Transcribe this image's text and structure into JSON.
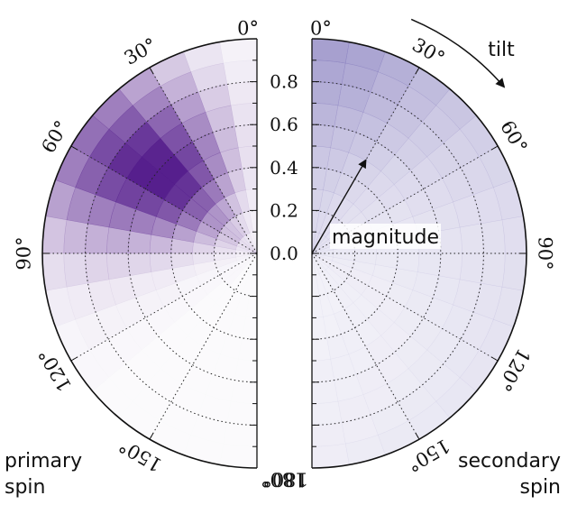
{
  "chart_data": {
    "type": "heatmap",
    "projection": "half-polar",
    "radial_axis": {
      "label": "magnitude",
      "range": [
        0,
        1
      ],
      "tick_values": [
        0.0,
        0.2,
        0.4,
        0.6,
        0.8
      ],
      "tick_labels": [
        "0.0",
        "0.2",
        "0.4",
        "0.6",
        "0.8"
      ],
      "minor_ticks": [
        0.1,
        0.3,
        0.5,
        0.7,
        0.9
      ],
      "grid": true
    },
    "angular_axis": {
      "label": "tilt",
      "unit": "deg",
      "range": [
        0,
        180
      ],
      "tick_values": [
        0,
        30,
        60,
        90,
        120,
        150,
        180
      ],
      "tick_labels": [
        "0°",
        "30°",
        "60°",
        "90°",
        "120°",
        "150°",
        "180°"
      ],
      "grid": true
    },
    "panels": [
      {
        "side": "left",
        "name_lines": [
          "primary",
          "spin"
        ],
        "color": "#3f007d",
        "peak": {
          "magnitude": 0.62,
          "tilt_deg": 42,
          "intensity": 0.9
        },
        "density_grid": {
          "magnitude_bins": [
            0.05,
            0.15,
            0.25,
            0.35,
            0.45,
            0.55,
            0.65,
            0.75,
            0.85,
            0.95
          ],
          "tilt_bins_deg": [
            5,
            15,
            25,
            35,
            45,
            55,
            65,
            75,
            85,
            95,
            105,
            115,
            125,
            135,
            145,
            155,
            165,
            175
          ],
          "values": [
            [
              0.05,
              0.06,
              0.08,
              0.1,
              0.12,
              0.13,
              0.12,
              0.1,
              0.08,
              0.06,
              0.05,
              0.04,
              0.03,
              0.03,
              0.02,
              0.02,
              0.02,
              0.02
            ],
            [
              0.06,
              0.09,
              0.14,
              0.2,
              0.24,
              0.25,
              0.22,
              0.17,
              0.12,
              0.08,
              0.06,
              0.04,
              0.03,
              0.03,
              0.02,
              0.02,
              0.02,
              0.02
            ],
            [
              0.08,
              0.14,
              0.24,
              0.35,
              0.42,
              0.42,
              0.36,
              0.26,
              0.17,
              0.1,
              0.06,
              0.04,
              0.03,
              0.02,
              0.02,
              0.02,
              0.02,
              0.02
            ],
            [
              0.1,
              0.2,
              0.36,
              0.52,
              0.62,
              0.62,
              0.52,
              0.37,
              0.23,
              0.13,
              0.07,
              0.04,
              0.03,
              0.02,
              0.02,
              0.02,
              0.02,
              0.02
            ],
            [
              0.12,
              0.25,
              0.45,
              0.66,
              0.8,
              0.8,
              0.66,
              0.46,
              0.28,
              0.15,
              0.08,
              0.05,
              0.03,
              0.02,
              0.02,
              0.02,
              0.02,
              0.02
            ],
            [
              0.12,
              0.26,
              0.48,
              0.72,
              0.88,
              0.88,
              0.72,
              0.5,
              0.3,
              0.16,
              0.08,
              0.05,
              0.03,
              0.02,
              0.02,
              0.02,
              0.02,
              0.02
            ],
            [
              0.11,
              0.24,
              0.45,
              0.68,
              0.86,
              0.88,
              0.74,
              0.52,
              0.32,
              0.17,
              0.09,
              0.05,
              0.03,
              0.02,
              0.02,
              0.02,
              0.02,
              0.02
            ],
            [
              0.09,
              0.2,
              0.38,
              0.6,
              0.78,
              0.82,
              0.7,
              0.5,
              0.31,
              0.17,
              0.09,
              0.05,
              0.03,
              0.02,
              0.02,
              0.02,
              0.02,
              0.02
            ],
            [
              0.07,
              0.15,
              0.3,
              0.48,
              0.64,
              0.7,
              0.62,
              0.45,
              0.28,
              0.15,
              0.08,
              0.05,
              0.03,
              0.02,
              0.02,
              0.02,
              0.02,
              0.02
            ],
            [
              0.05,
              0.1,
              0.21,
              0.36,
              0.5,
              0.56,
              0.5,
              0.37,
              0.23,
              0.13,
              0.07,
              0.04,
              0.03,
              0.02,
              0.02,
              0.02,
              0.02,
              0.02
            ]
          ]
        }
      },
      {
        "side": "right",
        "name_lines": [
          "secondary",
          "spin"
        ],
        "color": "#5e52a8",
        "peak": {
          "magnitude": 0.95,
          "tilt_deg": 0,
          "intensity": 0.55
        },
        "density_grid": {
          "magnitude_bins": [
            0.05,
            0.15,
            0.25,
            0.35,
            0.45,
            0.55,
            0.65,
            0.75,
            0.85,
            0.95
          ],
          "tilt_bins_deg": [
            5,
            15,
            25,
            35,
            45,
            55,
            65,
            75,
            85,
            95,
            105,
            115,
            125,
            135,
            145,
            155,
            165,
            175
          ],
          "values": [
            [
              0.2,
              0.2,
              0.19,
              0.18,
              0.17,
              0.16,
              0.15,
              0.14,
              0.13,
              0.12,
              0.11,
              0.1,
              0.1,
              0.09,
              0.09,
              0.08,
              0.08,
              0.08
            ],
            [
              0.22,
              0.21,
              0.2,
              0.19,
              0.17,
              0.16,
              0.15,
              0.14,
              0.13,
              0.12,
              0.11,
              0.1,
              0.1,
              0.09,
              0.09,
              0.08,
              0.08,
              0.08
            ],
            [
              0.25,
              0.24,
              0.22,
              0.2,
              0.18,
              0.17,
              0.15,
              0.14,
              0.13,
              0.12,
              0.11,
              0.1,
              0.1,
              0.09,
              0.09,
              0.08,
              0.08,
              0.08
            ],
            [
              0.28,
              0.27,
              0.25,
              0.22,
              0.2,
              0.18,
              0.16,
              0.15,
              0.13,
              0.12,
              0.11,
              0.1,
              0.1,
              0.09,
              0.09,
              0.09,
              0.08,
              0.08
            ],
            [
              0.32,
              0.31,
              0.28,
              0.25,
              0.22,
              0.2,
              0.17,
              0.15,
              0.14,
              0.13,
              0.12,
              0.11,
              0.1,
              0.1,
              0.09,
              0.09,
              0.09,
              0.08
            ],
            [
              0.37,
              0.35,
              0.32,
              0.28,
              0.24,
              0.21,
              0.19,
              0.17,
              0.15,
              0.14,
              0.13,
              0.12,
              0.11,
              0.1,
              0.1,
              0.09,
              0.09,
              0.09
            ],
            [
              0.42,
              0.4,
              0.36,
              0.31,
              0.27,
              0.23,
              0.2,
              0.18,
              0.16,
              0.15,
              0.14,
              0.13,
              0.12,
              0.11,
              0.1,
              0.1,
              0.09,
              0.09
            ],
            [
              0.47,
              0.45,
              0.4,
              0.34,
              0.29,
              0.25,
              0.22,
              0.19,
              0.17,
              0.16,
              0.15,
              0.14,
              0.13,
              0.12,
              0.11,
              0.1,
              0.1,
              0.09
            ],
            [
              0.51,
              0.49,
              0.43,
              0.37,
              0.31,
              0.26,
              0.23,
              0.2,
              0.18,
              0.17,
              0.16,
              0.15,
              0.14,
              0.13,
              0.12,
              0.11,
              0.1,
              0.1
            ],
            [
              0.55,
              0.52,
              0.46,
              0.39,
              0.33,
              0.28,
              0.24,
              0.21,
              0.19,
              0.18,
              0.17,
              0.16,
              0.15,
              0.14,
              0.13,
              0.12,
              0.11,
              0.1
            ]
          ]
        }
      }
    ],
    "annotations": [
      {
        "text": "tilt",
        "type": "arrow",
        "direction": "clockwise"
      },
      {
        "text": "magnitude",
        "type": "arrow",
        "direction": "radial-outward"
      }
    ]
  }
}
